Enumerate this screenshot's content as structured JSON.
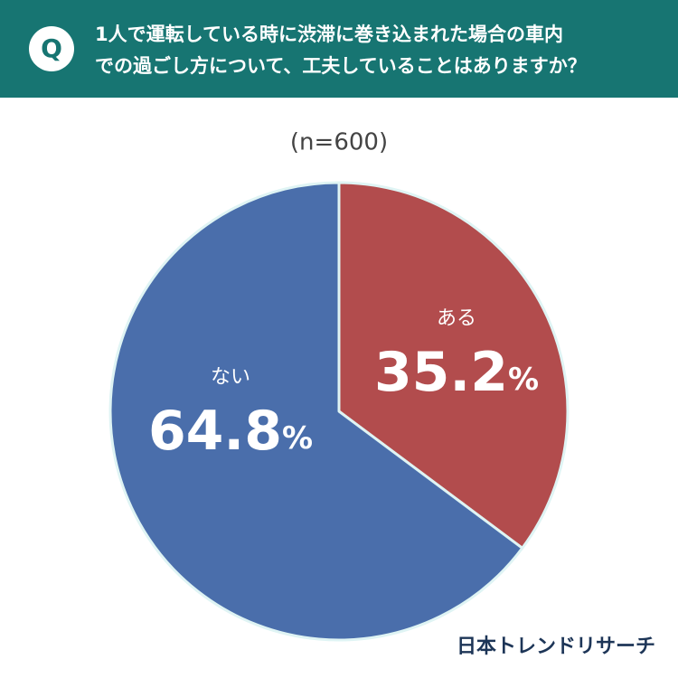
{
  "header": {
    "badge": "Q",
    "question": [
      "1人で運転している時に渋滞に巻き込まれた場合の車内",
      "での過ごし方について、工夫していることはありますか？"
    ]
  },
  "chart_data": {
    "type": "pie",
    "subtitle": "(n=600)",
    "categories": [
      "ある",
      "ない"
    ],
    "values": [
      35.2,
      64.8
    ],
    "value_labels": [
      "35.2%",
      "64.8%"
    ],
    "colors": [
      "#b24c4d",
      "#4a6eab"
    ]
  },
  "source": "日本トレンドリサーチ"
}
